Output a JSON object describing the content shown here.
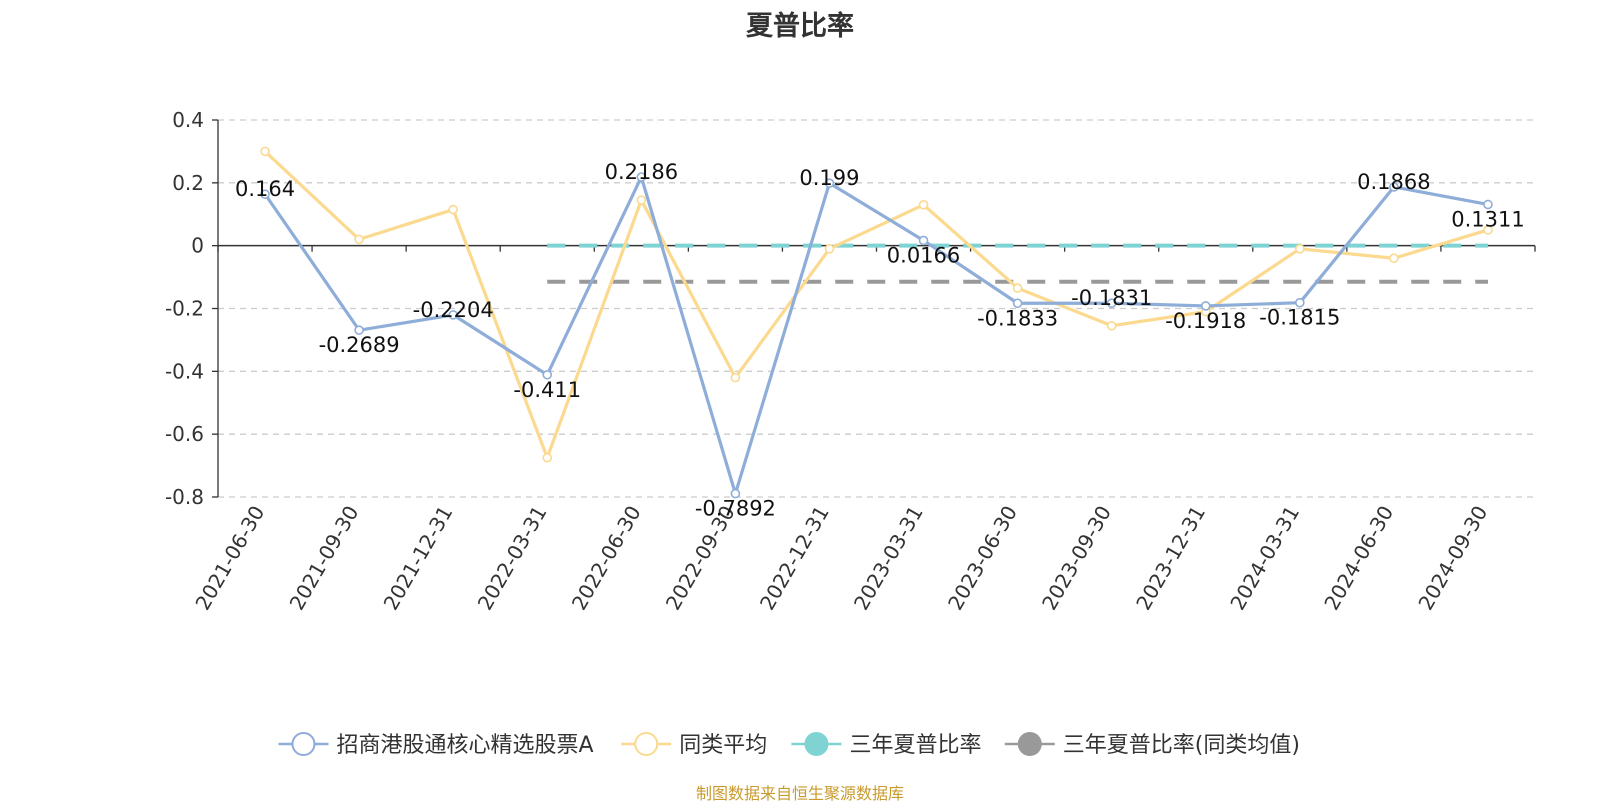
{
  "chart_data": {
    "type": "line",
    "title": "夏普比率",
    "xlabel": "",
    "ylabel": "",
    "categories": [
      "2021-06-30",
      "2021-09-30",
      "2021-12-31",
      "2022-03-31",
      "2022-06-30",
      "2022-09-30",
      "2022-12-31",
      "2023-03-31",
      "2023-06-30",
      "2023-09-30",
      "2023-12-31",
      "2024-03-31",
      "2024-06-30",
      "2024-09-30"
    ],
    "ylim": [
      -0.8,
      0.4
    ],
    "yticks": [
      -0.8,
      -0.6,
      -0.4,
      -0.2,
      0,
      0.2,
      0.4
    ],
    "ytick_labels": [
      "-0.8",
      "-0.6",
      "-0.4",
      "-0.2",
      "0",
      "0.2",
      "0.4"
    ],
    "grid": true,
    "legend_position": "bottom",
    "series": [
      {
        "name": "招商港股通核心精选股票A",
        "color": "#8eadd8",
        "values": [
          0.164,
          -0.2689,
          -0.2204,
          -0.411,
          0.2186,
          -0.7892,
          0.199,
          0.0166,
          -0.1833,
          -0.1831,
          -0.1918,
          -0.1815,
          0.1868,
          0.1311
        ],
        "labels": [
          "0.164",
          "-0.2689",
          "-0.2204",
          "-0.411",
          "0.2186",
          "-0.7892",
          "0.199",
          "0.0166",
          "-0.1833",
          "-0.1831",
          "-0.1918",
          "-0.1815",
          "0.1868",
          "0.1311"
        ]
      },
      {
        "name": "同类平均",
        "color": "#fbd98f",
        "values": [
          0.3,
          0.02,
          0.115,
          -0.675,
          0.145,
          -0.42,
          -0.01,
          0.13,
          -0.135,
          -0.255,
          -0.21,
          -0.01,
          -0.04,
          0.05
        ]
      },
      {
        "name": "三年夏普比率",
        "color": "#7fd3d3",
        "style": "dashed",
        "x_range": [
          "2022-03-31",
          "2024-09-30"
        ],
        "value": 0.0
      },
      {
        "name": "三年夏普比率(同类均值)",
        "color": "#999999",
        "style": "dashed",
        "x_range": [
          "2022-03-31",
          "2024-09-30"
        ],
        "value": -0.115
      }
    ]
  },
  "source_note": "制图数据来自恒生聚源数据库"
}
